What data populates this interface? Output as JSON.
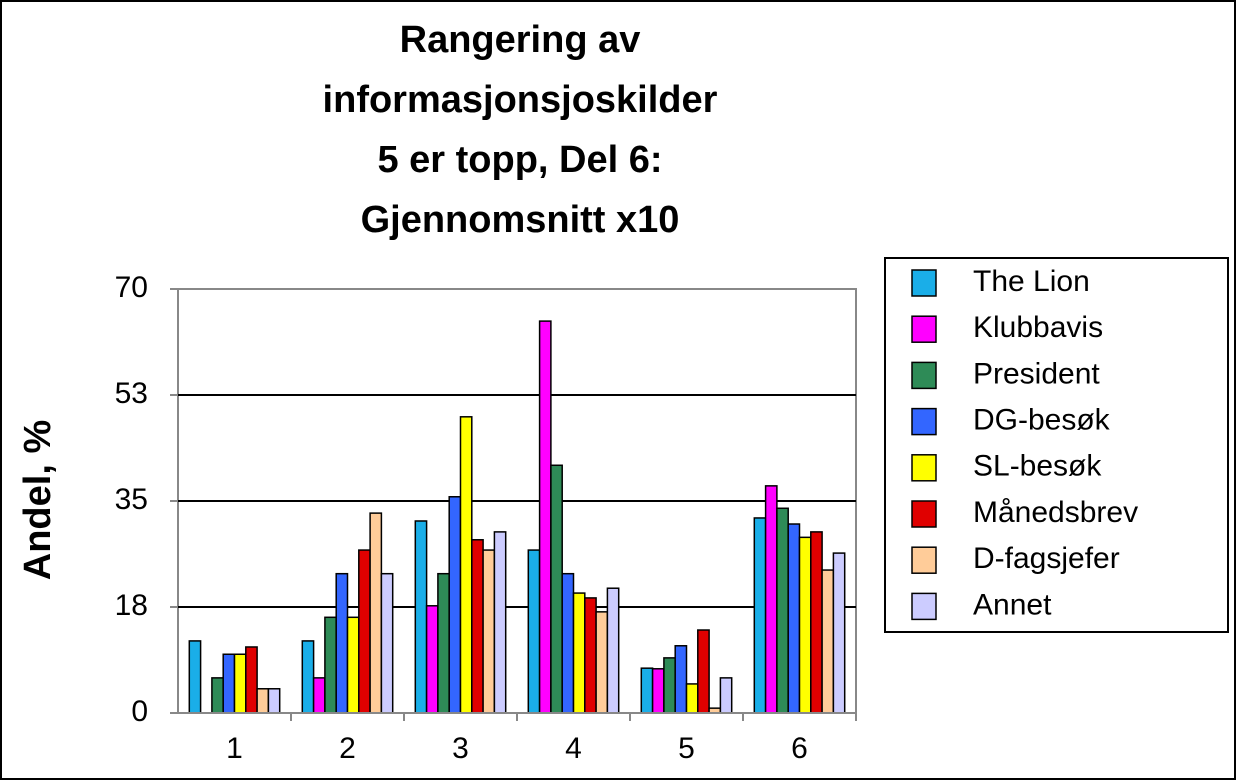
{
  "chart_data": {
    "type": "bar",
    "title": [
      "Rangering av",
      "informasjonsjoskilder",
      "5 er topp, Del 6:",
      "Gjennomsnitt x10"
    ],
    "y_label": "Andel, %",
    "categories": [
      "1",
      "2",
      "3",
      "4",
      "5",
      "6"
    ],
    "series": [
      {
        "name": "The Lion",
        "color": "#1aaee8",
        "values": [
          11.9,
          11.9,
          31.7,
          26.9,
          7.4,
          32.2
        ]
      },
      {
        "name": "Klubbavis",
        "color": "#ff00ff",
        "values": [
          0,
          5.8,
          17.7,
          64.7,
          7.3,
          37.5
        ]
      },
      {
        "name": "President",
        "color": "#2e8b57",
        "values": [
          5.8,
          15.8,
          23,
          40.9,
          9.1,
          33.8
        ]
      },
      {
        "name": "DG-besøk",
        "color": "#3366ff",
        "values": [
          9.7,
          23,
          35.7,
          23,
          11.1,
          31.2
        ]
      },
      {
        "name": "SL-besøk",
        "color": "#ffff00",
        "values": [
          9.7,
          15.8,
          48.9,
          19.8,
          4.8,
          29
        ]
      },
      {
        "name": "Månedsbrev",
        "color": "#e00000",
        "values": [
          10.9,
          26.9,
          28.6,
          19,
          13.7,
          29.9
        ]
      },
      {
        "name": "D-fagsjefer",
        "color": "#ffcc99",
        "values": [
          4,
          33,
          26.9,
          16.7,
          0.8,
          23.6
        ]
      },
      {
        "name": "Annet",
        "color": "#ccccff",
        "values": [
          4,
          23,
          29.9,
          20.6,
          5.8,
          26.4
        ]
      }
    ],
    "ylim": [
      0,
      70
    ],
    "yticks": [
      0,
      {
        "value": 17.5,
        "label": "18"
      },
      35,
      {
        "value": 52.5,
        "label": "53"
      },
      70
    ],
    "grid": true,
    "legend": "right"
  }
}
